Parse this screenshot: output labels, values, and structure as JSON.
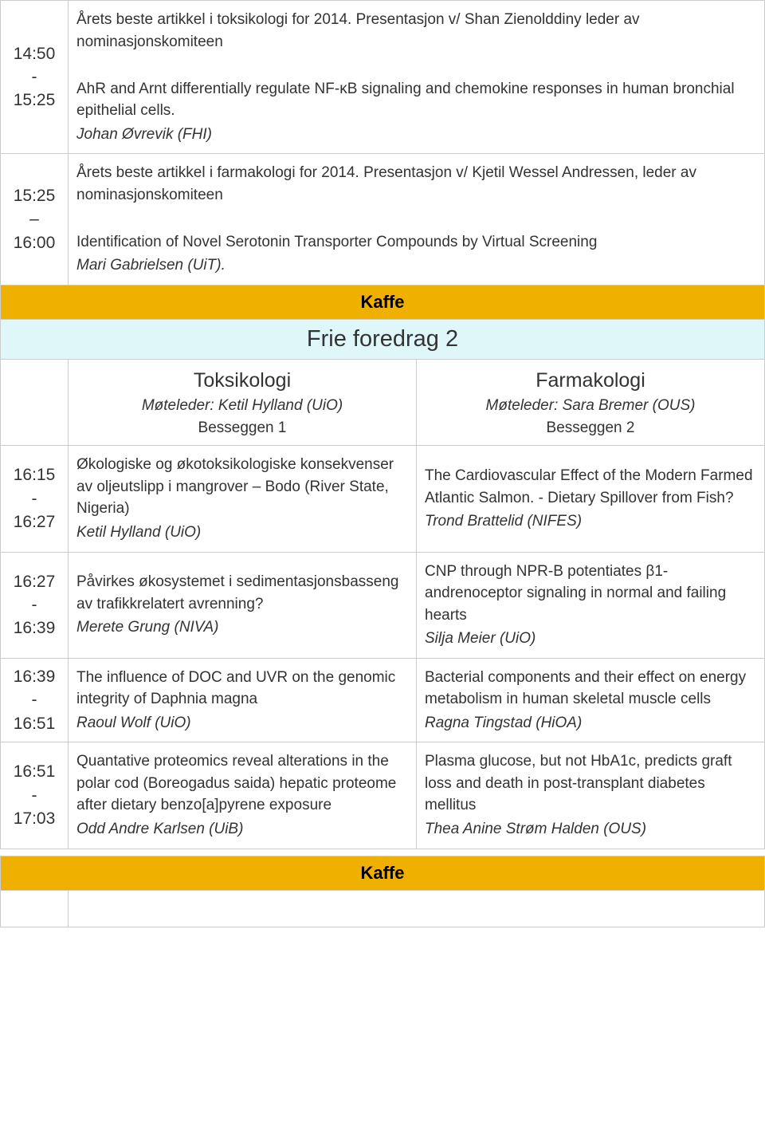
{
  "colors": {
    "border": "#cccccc",
    "break_bg": "#f0b000",
    "session_bg": "#e0f7fa",
    "text": "#333333",
    "bg": "#ffffff"
  },
  "typography": {
    "base_font": "Verdana",
    "base_size_pt": 14,
    "time_size_pt": 15,
    "break_size_pt": 16,
    "session_size_pt": 21,
    "track_title_pt": 18
  },
  "slots": [
    {
      "time_start": "14:50",
      "time_end": "15:25",
      "content_lines": [
        "Årets beste artikkel i toksikologi for 2014. Presentasjon v/ Shan Zienolddiny leder av nominasjonskomiteen",
        "",
        "AhR and Arnt differentially regulate NF-κB signaling and chemokine responses in human bronchial epithelial cells."
      ],
      "author_italic": "Johan Øvrevik (FHI)"
    },
    {
      "time_start": "15:25",
      "time_end": "16:00",
      "content_lines": [
        "Årets beste artikkel i farmakologi for 2014. Presentasjon v/ Kjetil Wessel Andressen, leder av nominasjonskomiteen",
        "",
        "Identification of Novel Serotonin Transporter Compounds by Virtual Screening"
      ],
      "author_italic": "Mari Gabrielsen (UiT)."
    }
  ],
  "break1": "Kaffe",
  "session2": {
    "title": "Frie foredrag 2",
    "tracks": [
      {
        "title": "Toksikologi",
        "chair": "Møteleder: Ketil Hylland (UiO)",
        "room": "Besseggen 1"
      },
      {
        "title": "Farmakologi",
        "chair": "Møteleder: Sara Bremer (OUS)",
        "room": "Besseggen 2"
      }
    ],
    "rows": [
      {
        "time_start": "16:15",
        "time_end": "16:27",
        "left_title": "Økologiske og økotoksikologiske konsekvenser av oljeutslipp i mangrover – Bodo (River State, Nigeria)",
        "left_author": "Ketil Hylland (UiO)",
        "right_title": "The Cardiovascular Effect of the Modern Farmed Atlantic Salmon. - Dietary Spillover from Fish?",
        "right_author": "Trond Brattelid (NIFES)"
      },
      {
        "time_start": "16:27",
        "time_end": "16:39",
        "left_title": "Påvirkes økosystemet i sedimentasjonsbasseng av trafikkrelatert avrenning?",
        "left_author": "Merete Grung (NIVA)",
        "right_title": "CNP through NPR-B potentiates β1-andrenoceptor signaling in normal and failing hearts",
        "right_author": "Silja Meier (UiO)"
      },
      {
        "time_start": "16:39",
        "time_end": "16:51",
        "left_title": "The influence of DOC and UVR on the genomic integrity of Daphnia magna",
        "left_author": "Raoul Wolf (UiO)",
        "right_title": "Bacterial components and their effect on energy metabolism in human skeletal muscle cells",
        "right_author": "Ragna Tingstad (HiOA)"
      },
      {
        "time_start": "16:51",
        "time_end": "17:03",
        "left_title": "Quantative proteomics reveal alterations in the polar cod (Boreogadus saida) hepatic proteome after dietary benzo[a]pyrene exposure",
        "left_author": "Odd Andre Karlsen (UiB)",
        "right_title": "Plasma glucose, but not HbA1c, predicts graft loss and death in post-transplant diabetes mellitus",
        "right_author": "Thea Anine Strøm Halden (OUS)"
      }
    ]
  },
  "break2": "Kaffe",
  "dash": "-",
  "endash": "–"
}
